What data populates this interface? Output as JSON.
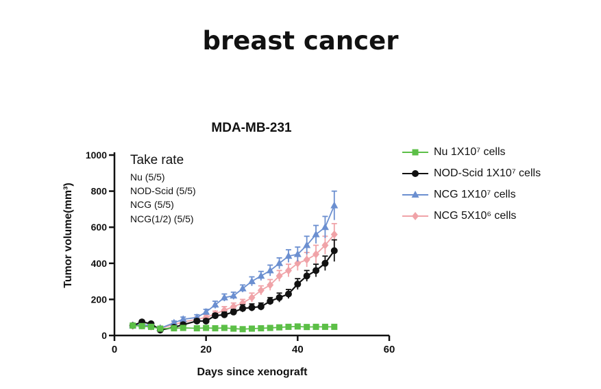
{
  "page": {
    "title": "breast cancer"
  },
  "chart_data": {
    "type": "line",
    "title": "MDA-MB-231",
    "xlabel": "Days since xenograft",
    "ylabel": "Tumor volume(mm³)",
    "xlim": [
      0,
      60
    ],
    "ylim": [
      0,
      1000
    ],
    "xticks": [
      0,
      20,
      40,
      60
    ],
    "yticks": [
      0,
      200,
      400,
      600,
      800,
      1000
    ],
    "take_rate": {
      "heading": "Take rate",
      "lines": [
        "Nu (5/5)",
        "NOD-Scid (5/5)",
        "NCG (5/5)",
        "NCG(1/2) (5/5)"
      ]
    },
    "legend_position": "right",
    "series": [
      {
        "name": "Nu 1X10⁷ cells",
        "color": "#5cbf47",
        "marker": "square",
        "x": [
          4,
          6,
          8,
          10,
          13,
          15,
          18,
          20,
          22,
          24,
          26,
          28,
          30,
          32,
          34,
          36,
          38,
          40,
          42,
          44,
          46,
          48
        ],
        "y": [
          55,
          52,
          48,
          38,
          40,
          42,
          40,
          42,
          40,
          42,
          38,
          35,
          38,
          40,
          42,
          45,
          48,
          50,
          47,
          48,
          48,
          48
        ],
        "err": [
          5,
          5,
          5,
          5,
          5,
          5,
          5,
          5,
          5,
          5,
          5,
          8,
          5,
          5,
          5,
          5,
          5,
          5,
          5,
          5,
          5,
          5
        ]
      },
      {
        "name": "NOD-Scid 1X10⁷ cells",
        "color": "#111111",
        "marker": "circle",
        "x": [
          4,
          6,
          8,
          10,
          13,
          15,
          18,
          20,
          22,
          24,
          26,
          28,
          30,
          32,
          34,
          36,
          38,
          40,
          42,
          44,
          46,
          48
        ],
        "y": [
          55,
          75,
          65,
          30,
          45,
          60,
          80,
          80,
          110,
          115,
          130,
          150,
          155,
          160,
          190,
          210,
          230,
          285,
          330,
          360,
          400,
          470
        ],
        "err": [
          8,
          10,
          8,
          8,
          10,
          10,
          12,
          12,
          12,
          15,
          15,
          20,
          20,
          20,
          20,
          25,
          25,
          30,
          30,
          35,
          40,
          60
        ]
      },
      {
        "name": "NCG 1X10⁷ cells",
        "color": "#6b8fd0",
        "marker": "triangle",
        "x": [
          4,
          6,
          8,
          10,
          13,
          15,
          18,
          20,
          22,
          24,
          26,
          28,
          30,
          32,
          34,
          36,
          38,
          40,
          42,
          44,
          46,
          48
        ],
        "y": [
          55,
          60,
          55,
          40,
          70,
          90,
          100,
          130,
          170,
          210,
          220,
          260,
          300,
          330,
          360,
          400,
          440,
          450,
          500,
          560,
          600,
          720
        ],
        "err": [
          8,
          10,
          8,
          8,
          10,
          12,
          15,
          15,
          20,
          20,
          20,
          20,
          25,
          25,
          30,
          30,
          35,
          40,
          50,
          50,
          60,
          80
        ]
      },
      {
        "name": "NCG 5X10⁶ cells",
        "color": "#f0a3a8",
        "marker": "diamond",
        "x": [
          4,
          6,
          8,
          10,
          13,
          15,
          18,
          20,
          22,
          24,
          26,
          28,
          30,
          32,
          34,
          36,
          38,
          40,
          42,
          44,
          46,
          48
        ],
        "y": [
          55,
          55,
          50,
          40,
          60,
          75,
          90,
          100,
          120,
          140,
          160,
          180,
          210,
          250,
          280,
          330,
          360,
          400,
          420,
          450,
          500,
          560
        ],
        "err": [
          8,
          8,
          8,
          8,
          10,
          10,
          12,
          15,
          15,
          20,
          20,
          20,
          25,
          25,
          30,
          30,
          35,
          40,
          40,
          50,
          50,
          60
        ]
      }
    ]
  }
}
